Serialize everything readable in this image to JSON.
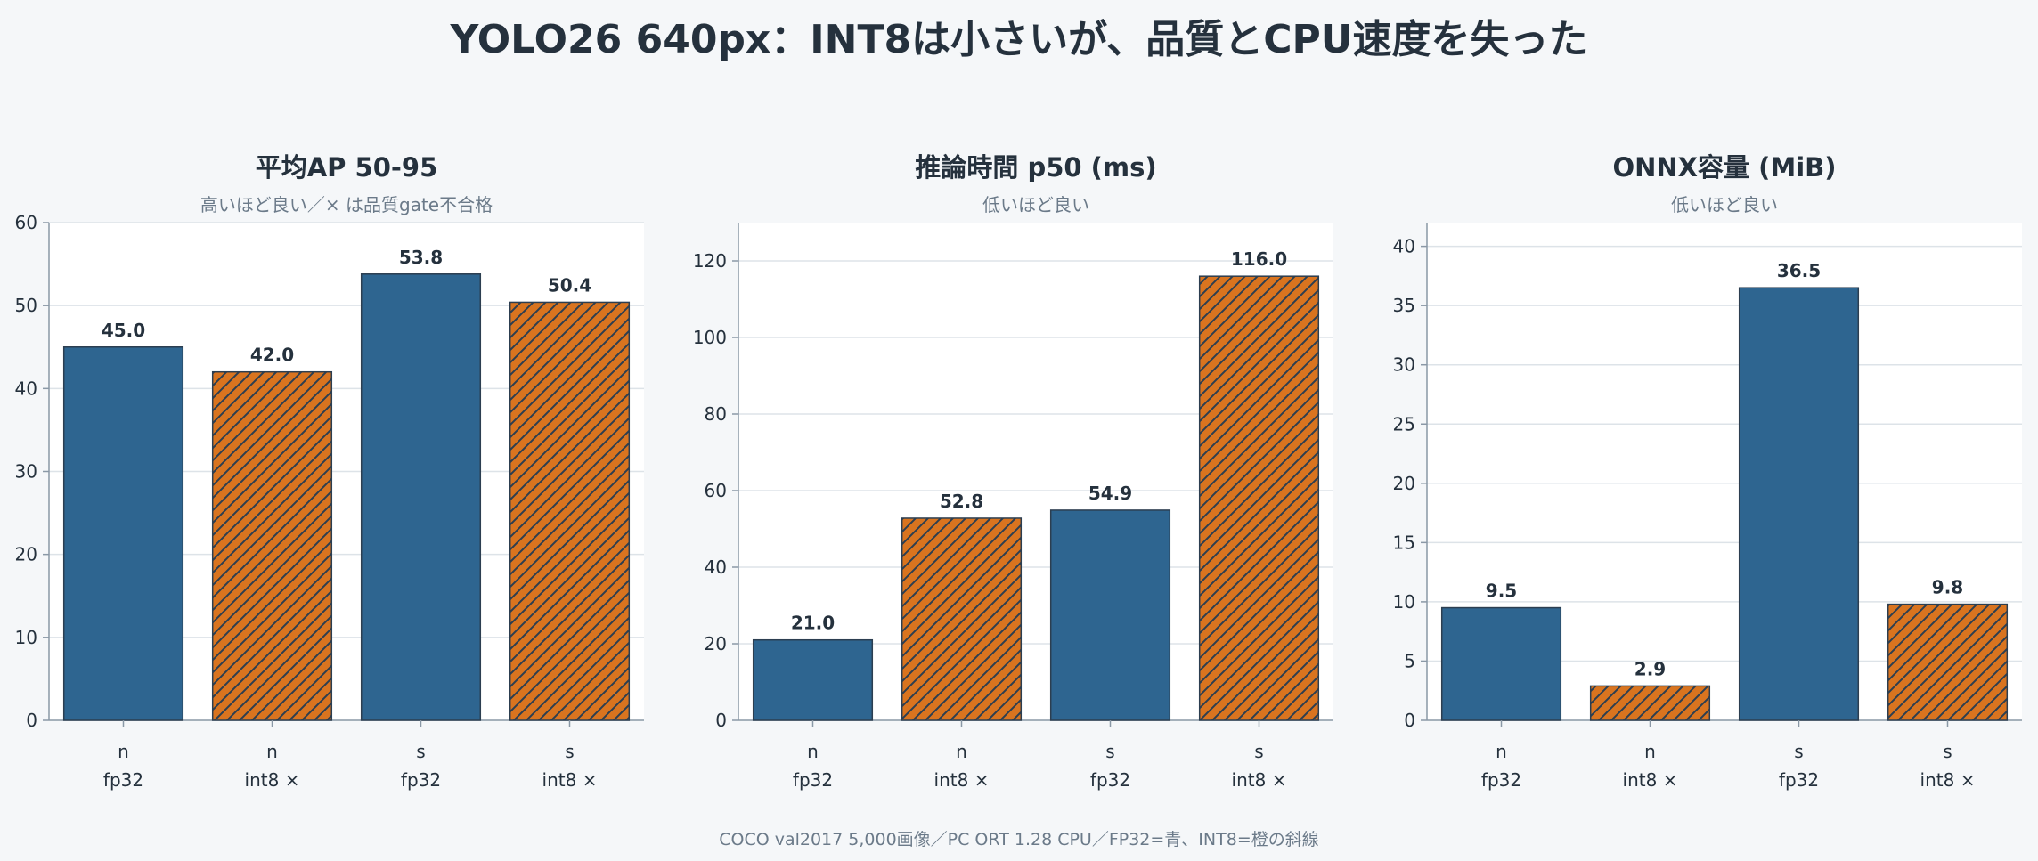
{
  "figure": {
    "title": "YOLO26 640px：INT8は小さいが、品質とCPU速度を失った",
    "footnote": "COCO val2017 5,000画像／PC ORT 1.28 CPU／FP32=青、INT8=橙の斜線"
  },
  "colors": {
    "fp32": "#2e6590",
    "int8": "#d9741f",
    "hatch": "#2c3e50",
    "text": "#25313d",
    "subtext": "#6b7a89",
    "grid": "#dde3e8",
    "axis": "#8a98a6",
    "plot_bg": "#ffffff"
  },
  "chart_data": [
    {
      "type": "bar",
      "title": "平均AP 50-95",
      "subtitle": "高いほど良い／× は品質gate不合格",
      "categories": [
        {
          "model": "n",
          "precision": "fp32"
        },
        {
          "model": "n",
          "precision": "int8 ×"
        },
        {
          "model": "s",
          "precision": "fp32"
        },
        {
          "model": "s",
          "precision": "int8 ×"
        }
      ],
      "values": [
        45.0,
        42.0,
        53.8,
        50.4
      ],
      "value_labels": [
        "45.0",
        "42.0",
        "53.8",
        "50.4"
      ],
      "styles": [
        "fp32",
        "int8",
        "fp32",
        "int8"
      ],
      "ylim": [
        0,
        60
      ],
      "yticks": [
        0,
        10,
        20,
        30,
        40,
        50,
        60
      ],
      "grid": true
    },
    {
      "type": "bar",
      "title": "推論時間 p50 (ms)",
      "subtitle": "低いほど良い",
      "categories": [
        {
          "model": "n",
          "precision": "fp32"
        },
        {
          "model": "n",
          "precision": "int8 ×"
        },
        {
          "model": "s",
          "precision": "fp32"
        },
        {
          "model": "s",
          "precision": "int8 ×"
        }
      ],
      "values": [
        21.0,
        52.8,
        54.9,
        116.0
      ],
      "value_labels": [
        "21.0",
        "52.8",
        "54.9",
        "116.0"
      ],
      "styles": [
        "fp32",
        "int8",
        "fp32",
        "int8"
      ],
      "ylim": [
        0,
        130
      ],
      "yticks": [
        0,
        20,
        40,
        60,
        80,
        100,
        120
      ],
      "grid": true
    },
    {
      "type": "bar",
      "title": "ONNX容量 (MiB)",
      "subtitle": "低いほど良い",
      "categories": [
        {
          "model": "n",
          "precision": "fp32"
        },
        {
          "model": "n",
          "precision": "int8 ×"
        },
        {
          "model": "s",
          "precision": "fp32"
        },
        {
          "model": "s",
          "precision": "int8 ×"
        }
      ],
      "values": [
        9.5,
        2.9,
        36.5,
        9.8
      ],
      "value_labels": [
        "9.5",
        "2.9",
        "36.5",
        "9.8"
      ],
      "styles": [
        "fp32",
        "int8",
        "fp32",
        "int8"
      ],
      "ylim": [
        0,
        42
      ],
      "yticks": [
        0,
        5,
        10,
        15,
        20,
        25,
        30,
        35,
        40
      ],
      "grid": true
    }
  ]
}
